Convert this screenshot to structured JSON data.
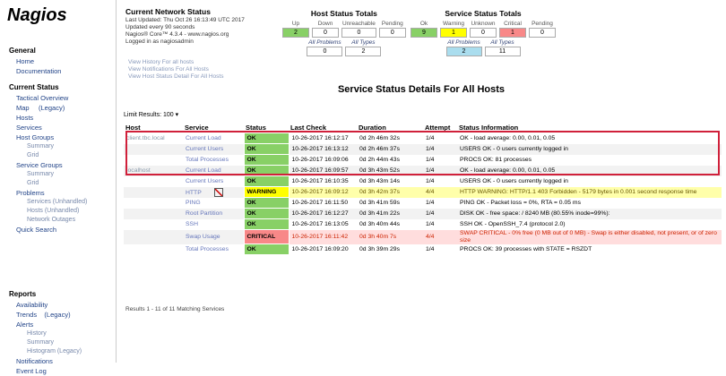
{
  "sidebar": {
    "logo": "Nagios",
    "sections": [
      {
        "title": "General",
        "items": [
          {
            "label": "Home"
          },
          {
            "label": "Documentation"
          }
        ]
      },
      {
        "title": "Current Status",
        "items": [
          {
            "label": "Tactical Overview"
          },
          {
            "label": "Map     (Legacy)"
          },
          {
            "label": "Hosts"
          },
          {
            "label": "Services"
          },
          {
            "label": "Host Groups",
            "children": [
              "Summary",
              "Grid"
            ]
          },
          {
            "label": "Service Groups",
            "children": [
              "Summary",
              "Grid"
            ]
          },
          {
            "label": "Problems",
            "children": [
              "Services (Unhandled)",
              "Hosts (Unhandled)",
              "Network Outages"
            ]
          },
          {
            "label": "Quick Search"
          }
        ]
      },
      {
        "title": "Reports",
        "items": [
          {
            "label": "Availability"
          },
          {
            "label": "Trends    (Legacy)"
          },
          {
            "label": "Alerts",
            "children": [
              "History",
              "Summary",
              "Histogram (Legacy)"
            ]
          },
          {
            "label": "Notifications"
          },
          {
            "label": "Event Log"
          }
        ]
      }
    ]
  },
  "header": {
    "title": "Current Network Status",
    "lines": [
      "Last Updated: Thu Oct 26 16:13:49 UTC 2017",
      "Updated every 90 seconds",
      "Nagios® Core™ 4.3.4 - www.nagios.org",
      "Logged in as nagiosadmin"
    ],
    "links": [
      "View History For all hosts",
      "View Notifications For All Hosts",
      "View Host Status Detail For All Hosts"
    ]
  },
  "host_totals": {
    "title": "Host Status Totals",
    "headers": [
      "Up",
      "Down",
      "Unreachable",
      "Pending"
    ],
    "counts": [
      "2",
      "0",
      "0",
      "0"
    ],
    "colors": [
      "#88d066",
      null,
      null,
      null
    ],
    "summary_headers": [
      "All Problems",
      "All Types"
    ],
    "summary_counts": [
      "0",
      "2"
    ],
    "summary_colors": [
      null,
      null
    ]
  },
  "service_totals": {
    "title": "Service Status Totals",
    "headers": [
      "Ok",
      "Warning",
      "Unknown",
      "Critical",
      "Pending"
    ],
    "counts": [
      "9",
      "1",
      "0",
      "1",
      "0"
    ],
    "colors": [
      "#88d066",
      "#ffff00",
      null,
      "#f88888",
      null
    ],
    "summary_headers": [
      "All Problems",
      "All Types"
    ],
    "summary_counts": [
      "2",
      "11"
    ],
    "summary_colors": [
      "#aaddee",
      null
    ]
  },
  "title": "Service Status Details For All Hosts",
  "limit": {
    "label": "Limit Results:",
    "value": "100"
  },
  "table": {
    "headers": [
      "Host",
      "Service",
      "Status",
      "Last Check",
      "Duration",
      "Attempt",
      "Status Information"
    ],
    "hosts": [
      {
        "name": "client.tbc.local",
        "services": [
          {
            "service": "Current Load",
            "status": "OK",
            "color": "#88d066",
            "last_check": "10-26-2017 16:12:17",
            "duration": "0d 2h 46m 32s",
            "attempt": "1/4",
            "info": "OK - load average: 0.00, 0.01, 0.05"
          },
          {
            "service": "Current Users",
            "status": "OK",
            "color": "#88d066",
            "last_check": "10-26-2017 16:13:12",
            "duration": "0d 2h 46m 37s",
            "attempt": "1/4",
            "info": "USERS OK - 0 users currently logged in"
          },
          {
            "service": "Total Processes",
            "status": "OK",
            "color": "#88d066",
            "last_check": "10-26-2017 16:09:06",
            "duration": "0d 2h 44m 43s",
            "attempt": "1/4",
            "info": "PROCS OK: 81 processes"
          }
        ]
      },
      {
        "name": "localhost",
        "services": [
          {
            "service": "Current Load",
            "status": "OK",
            "color": "#88d066",
            "last_check": "10-26-2017 16:09:57",
            "duration": "0d 3h 43m 52s",
            "attempt": "1/4",
            "info": "OK - load average: 0.00, 0.01, 0.05"
          },
          {
            "service": "Current Users",
            "status": "OK",
            "color": "#88d066",
            "last_check": "10-26-2017 16:10:35",
            "duration": "0d 3h 43m 14s",
            "attempt": "1/4",
            "info": "USERS OK - 0 users currently logged in"
          },
          {
            "service": "HTTP",
            "status": "WARNING",
            "color": "#ffff00",
            "last_check": "10-26-2017 16:09:12",
            "duration": "0d 3h 42m 37s",
            "attempt": "4/4",
            "info": "HTTP WARNING: HTTP/1.1 403 Forbidden - 5179 bytes in 0.001 second response time"
          },
          {
            "service": "PING",
            "status": "OK",
            "color": "#88d066",
            "last_check": "10-26-2017 16:11:50",
            "duration": "0d 3h 41m 59s",
            "attempt": "1/4",
            "info": "PING OK - Packet loss = 0%, RTA = 0.05 ms"
          },
          {
            "service": "Root Partition",
            "status": "OK",
            "color": "#88d066",
            "last_check": "10-26-2017 16:12:27",
            "duration": "0d 3h 41m 22s",
            "attempt": "1/4",
            "info": "DISK OK - free space: / 8240 MB (80.55% inode=99%):"
          },
          {
            "service": "SSH",
            "status": "OK",
            "color": "#88d066",
            "last_check": "10-26-2017 16:13:05",
            "duration": "0d 3h 40m 44s",
            "attempt": "1/4",
            "info": "SSH OK - OpenSSH_7.4 (protocol 2.0)"
          },
          {
            "service": "Swap Usage",
            "status": "CRITICAL",
            "color": "#f88888",
            "last_check": "10-26-2017 16:11:42",
            "duration": "0d 3h 40m 7s",
            "attempt": "4/4",
            "info": "SWAP CRITICAL - 0% free (0 MB out of 0 MB) - Swap is either disabled, not present, or of zero size"
          },
          {
            "service": "Total Processes",
            "status": "OK",
            "color": "#88d066",
            "last_check": "10-26-2017 16:09:20",
            "duration": "0d 3h 39m 29s",
            "attempt": "1/4",
            "info": "PROCS OK: 39 processes with STATE = RSZDT"
          }
        ]
      }
    ]
  },
  "footer": "Results 1 - 11 of 11 Matching Services"
}
